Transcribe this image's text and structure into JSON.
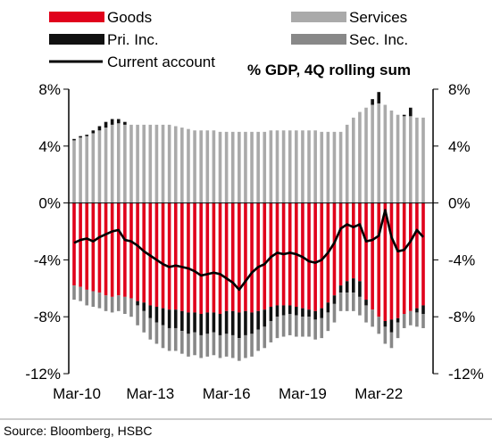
{
  "chart_data": {
    "type": "bar",
    "subtype": "stacked bar with line overlay",
    "title": "% GDP, 4Q rolling sum",
    "source": "Source: Bloomberg, HSBC",
    "legend": [
      {
        "label": "Goods",
        "color": "#e0001b",
        "swatch": "bar"
      },
      {
        "label": "Services",
        "color": "#aaaaaa",
        "swatch": "bar"
      },
      {
        "label": "Pri. Inc.",
        "color": "#111111",
        "swatch": "bar"
      },
      {
        "label": "Sec. Inc.",
        "color": "#888888",
        "swatch": "bar"
      },
      {
        "label": "Current account",
        "color": "#000000",
        "swatch": "line"
      }
    ],
    "x_tick_labels": [
      "Mar-10",
      "Mar-13",
      "Mar-16",
      "Mar-19",
      "Mar-22"
    ],
    "y_ticks": [
      8,
      4,
      0,
      -4,
      -8,
      -12
    ],
    "y_tick_labels": [
      "8%",
      "4%",
      "0%",
      "-4%",
      "-8%",
      "-12%"
    ],
    "ylim": [
      -12,
      8
    ],
    "grid": false,
    "categories": [
      "Mar-10",
      "Jun-10",
      "Sep-10",
      "Dec-10",
      "Mar-11",
      "Jun-11",
      "Sep-11",
      "Dec-11",
      "Mar-12",
      "Jun-12",
      "Sep-12",
      "Dec-12",
      "Mar-13",
      "Jun-13",
      "Sep-13",
      "Dec-13",
      "Mar-14",
      "Jun-14",
      "Sep-14",
      "Dec-14",
      "Mar-15",
      "Jun-15",
      "Sep-15",
      "Dec-15",
      "Mar-16",
      "Jun-16",
      "Sep-16",
      "Dec-16",
      "Mar-17",
      "Jun-17",
      "Sep-17",
      "Dec-17",
      "Mar-18",
      "Jun-18",
      "Sep-18",
      "Dec-18",
      "Mar-19",
      "Jun-19",
      "Sep-19",
      "Dec-19",
      "Mar-20",
      "Jun-20",
      "Sep-20",
      "Dec-20",
      "Mar-21",
      "Jun-21",
      "Sep-21",
      "Dec-21",
      "Mar-22",
      "Jun-22",
      "Sep-22",
      "Dec-22",
      "Mar-23",
      "Jun-23",
      "Sep-23",
      "Dec-23"
    ],
    "series": [
      {
        "name": "Goods",
        "color": "#e0001b",
        "values": [
          -5.8,
          -5.9,
          -6.1,
          -6.2,
          -6.3,
          -6.5,
          -6.6,
          -6.5,
          -6.6,
          -6.7,
          -6.9,
          -7.0,
          -7.2,
          -7.3,
          -7.4,
          -7.5,
          -7.5,
          -7.6,
          -7.7,
          -7.7,
          -7.8,
          -7.7,
          -7.7,
          -7.8,
          -7.6,
          -7.6,
          -7.7,
          -7.6,
          -7.7,
          -7.6,
          -7.5,
          -7.3,
          -7.2,
          -7.2,
          -7.2,
          -7.3,
          -7.4,
          -7.5,
          -7.6,
          -7.4,
          -7.0,
          -6.5,
          -5.8,
          -5.5,
          -5.3,
          -5.5,
          -6.8,
          -7.5,
          -8.0,
          -8.3,
          -8.2,
          -8.1,
          -7.8,
          -7.6,
          -7.4,
          -7.2
        ]
      },
      {
        "name": "Services",
        "color": "#aaaaaa",
        "values": [
          4.4,
          4.6,
          4.7,
          4.9,
          5.1,
          5.3,
          5.5,
          5.6,
          5.5,
          5.5,
          5.5,
          5.5,
          5.5,
          5.5,
          5.5,
          5.5,
          5.4,
          5.3,
          5.2,
          5.1,
          5.1,
          5.1,
          5.1,
          5.0,
          5.0,
          5.0,
          5.0,
          5.0,
          5.0,
          5.0,
          5.0,
          5.1,
          5.1,
          5.1,
          5.1,
          5.1,
          5.1,
          5.1,
          5.1,
          5.0,
          5.0,
          5.0,
          5.0,
          5.5,
          6.0,
          6.4,
          6.7,
          6.9,
          7.0,
          6.9,
          6.5,
          6.2,
          6.1,
          6.1,
          6.0,
          6.0
        ]
      },
      {
        "name": "Pri. Inc.",
        "color": "#111111",
        "values": [
          0.1,
          0.1,
          0.1,
          0.2,
          0.3,
          0.4,
          0.4,
          0.3,
          0.2,
          0.0,
          -0.3,
          -0.6,
          -0.9,
          -1.1,
          -1.2,
          -1.3,
          -1.3,
          -1.4,
          -1.5,
          -1.4,
          -1.5,
          -1.5,
          -1.4,
          -1.5,
          -1.6,
          -1.7,
          -1.8,
          -1.7,
          -1.5,
          -1.3,
          -1.2,
          -1.0,
          -0.8,
          -0.7,
          -0.6,
          -0.6,
          -0.6,
          -0.5,
          -0.6,
          -0.7,
          -0.7,
          -0.6,
          -0.5,
          -0.8,
          -1.0,
          -1.1,
          -0.4,
          0.4,
          0.8,
          -0.4,
          -0.9,
          -0.3,
          0.1,
          0.6,
          -0.3,
          -0.6
        ]
      },
      {
        "name": "Sec. Inc.",
        "color": "#888888",
        "values": [
          -1.0,
          -1.0,
          -1.1,
          -1.1,
          -1.1,
          -1.1,
          -1.1,
          -1.1,
          -1.2,
          -1.3,
          -1.4,
          -1.5,
          -1.5,
          -1.5,
          -1.6,
          -1.6,
          -1.6,
          -1.6,
          -1.6,
          -1.6,
          -1.6,
          -1.6,
          -1.6,
          -1.6,
          -1.6,
          -1.6,
          -1.6,
          -1.6,
          -1.6,
          -1.5,
          -1.5,
          -1.5,
          -1.5,
          -1.5,
          -1.5,
          -1.5,
          -1.4,
          -1.4,
          -1.4,
          -1.4,
          -1.3,
          -1.3,
          -1.3,
          -1.3,
          -1.3,
          -1.3,
          -1.2,
          -1.2,
          -1.2,
          -1.2,
          -1.1,
          -1.1,
          -1.0,
          -1.0,
          -1.0,
          -1.0
        ]
      },
      {
        "name": "Current account",
        "color": "#000000",
        "type": "line",
        "values": [
          -2.8,
          -2.6,
          -2.5,
          -2.7,
          -2.4,
          -2.2,
          -2.0,
          -1.9,
          -2.6,
          -2.7,
          -3.0,
          -3.4,
          -3.7,
          -4.0,
          -4.3,
          -4.5,
          -4.4,
          -4.5,
          -4.6,
          -4.8,
          -5.1,
          -5.0,
          -4.9,
          -5.0,
          -5.3,
          -5.6,
          -6.1,
          -5.5,
          -4.9,
          -4.5,
          -4.3,
          -3.8,
          -3.5,
          -3.6,
          -3.5,
          -3.6,
          -3.8,
          -4.1,
          -4.2,
          -4.0,
          -3.5,
          -2.8,
          -1.8,
          -1.5,
          -1.7,
          -1.5,
          -2.7,
          -2.6,
          -2.3,
          -0.5,
          -2.4,
          -3.4,
          -3.3,
          -2.7,
          -1.9,
          -2.4
        ]
      }
    ]
  }
}
